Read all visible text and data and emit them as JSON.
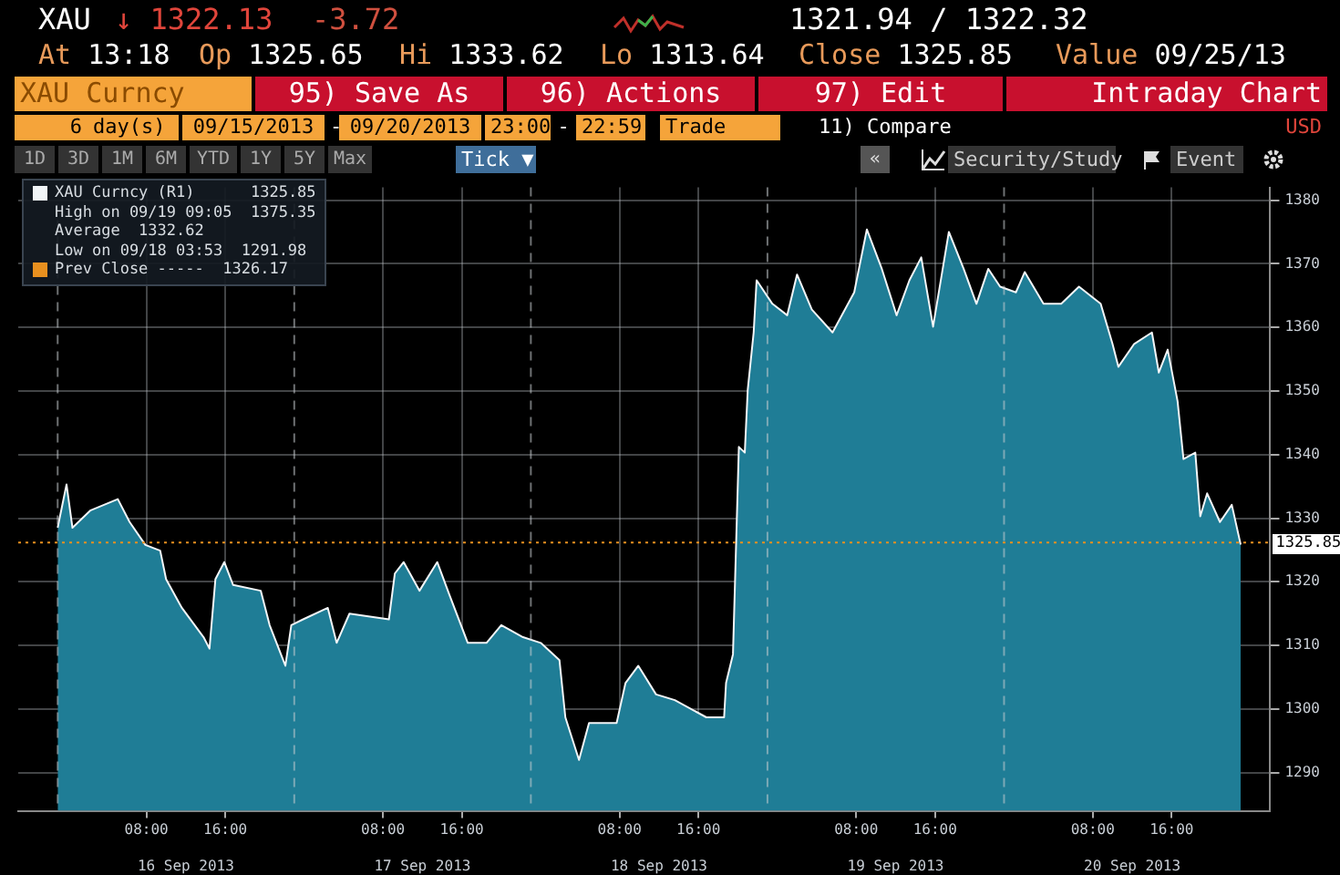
{
  "chart_data": {
    "type": "area",
    "x": [
      "2013-09-15T23:00",
      "2013-09-15T23:54",
      "2013-09-16T00:30",
      "2013-09-16T02:18",
      "2013-09-16T05:06",
      "2013-09-16T06:18",
      "2013-09-16T07:54",
      "2013-09-16T09:24",
      "2013-09-16T10:00",
      "2013-09-16T11:36",
      "2013-09-16T13:48",
      "2013-09-16T14:24",
      "2013-09-16T15:00",
      "2013-09-16T15:54",
      "2013-09-16T16:48",
      "2013-09-16T19:36",
      "2013-09-16T20:30",
      "2013-09-16T22:06",
      "2013-09-16T22:42",
      "2013-09-16T23:54",
      "2013-09-17T02:24",
      "2013-09-17T03:18",
      "2013-09-17T04:36",
      "2013-09-17T08:36",
      "2013-09-17T09:12",
      "2013-09-17T10:06",
      "2013-09-17T11:42",
      "2013-09-17T13:30",
      "2013-09-17T14:48",
      "2013-09-17T16:36",
      "2013-09-17T18:30",
      "2013-09-17T20:00",
      "2013-09-17T22:12",
      "2013-09-18T00:00",
      "2013-09-18T01:54",
      "2013-09-18T02:30",
      "2013-09-18T03:53",
      "2013-09-18T04:54",
      "2013-09-18T07:42",
      "2013-09-18T08:36",
      "2013-09-18T09:54",
      "2013-09-18T11:42",
      "2013-09-18T13:36",
      "2013-09-18T16:48",
      "2013-09-18T18:36",
      "2013-09-18T18:48",
      "2013-09-18T19:30",
      "2013-09-18T20:06",
      "2013-09-18T20:42",
      "2013-09-18T21:00",
      "2013-09-18T21:36",
      "2013-09-18T21:54",
      "2013-09-18T23:30",
      "2013-09-19T01:00",
      "2013-09-19T02:00",
      "2013-09-19T03:30",
      "2013-09-19T05:36",
      "2013-09-19T07:48",
      "2013-09-19T09:05",
      "2013-09-19T10:36",
      "2013-09-19T12:06",
      "2013-09-19T13:24",
      "2013-09-19T14:36",
      "2013-09-19T15:48",
      "2013-09-19T17:24",
      "2013-09-19T18:54",
      "2013-09-19T20:12",
      "2013-09-19T21:24",
      "2013-09-19T22:36",
      "2013-09-20T00:12",
      "2013-09-20T01:06",
      "2013-09-20T03:00",
      "2013-09-20T04:48",
      "2013-09-20T06:36",
      "2013-09-20T08:48",
      "2013-09-20T10:00",
      "2013-09-20T10:36",
      "2013-09-20T12:12",
      "2013-09-20T14:00",
      "2013-09-20T14:42",
      "2013-09-20T15:36",
      "2013-09-20T16:36",
      "2013-09-20T17:12",
      "2013-09-20T18:24",
      "2013-09-20T18:54",
      "2013-09-20T19:36",
      "2013-09-20T20:54",
      "2013-09-20T22:06",
      "2013-09-20T23:00"
    ],
    "series": [
      {
        "name": "XAU Curncy (R1)",
        "color": "#1f7d96",
        "values": [
          1328.5,
          1335.3,
          1328.5,
          1331.2,
          1333,
          1329.4,
          1325.8,
          1324.9,
          1320.4,
          1315.9,
          1311.3,
          1309.5,
          1320.4,
          1323.1,
          1319.5,
          1318.6,
          1313.2,
          1306.8,
          1313.2,
          1314.1,
          1315.9,
          1310.4,
          1315,
          1314.1,
          1321.3,
          1323.1,
          1318.6,
          1323.1,
          1317.7,
          1310.4,
          1310.4,
          1313.2,
          1311.3,
          1310.4,
          1307.7,
          1298.7,
          1292,
          1297.8,
          1297.8,
          1304.1,
          1306.8,
          1302.3,
          1301.4,
          1298.7,
          1298.7,
          1304.1,
          1308.6,
          1341.2,
          1340.3,
          1350.2,
          1359.2,
          1367.4,
          1363.7,
          1361.9,
          1368.3,
          1362.8,
          1359.2,
          1365.5,
          1375.4,
          1369.2,
          1361.9,
          1367.4,
          1371,
          1360.1,
          1375,
          1369.2,
          1363.7,
          1369.2,
          1366.4,
          1365.5,
          1368.7,
          1363.7,
          1363.7,
          1366.4,
          1363.7,
          1357.4,
          1353.8,
          1357.4,
          1359.2,
          1352.9,
          1356.5,
          1348.4,
          1339.3,
          1340.3,
          1330.3,
          1333.9,
          1329.4,
          1332.1,
          1325.85
        ]
      }
    ],
    "xlim": [
      "2013-09-15T19:00",
      "2013-09-21T02:00"
    ],
    "xticks": [
      {
        "value": "2013-09-16T08:00",
        "label": "08:00"
      },
      {
        "value": "2013-09-16T16:00",
        "label": "16:00"
      },
      {
        "value": "2013-09-17T08:00",
        "label": "08:00"
      },
      {
        "value": "2013-09-17T16:00",
        "label": "16:00"
      },
      {
        "value": "2013-09-18T08:00",
        "label": "08:00"
      },
      {
        "value": "2013-09-18T16:00",
        "label": "16:00"
      },
      {
        "value": "2013-09-19T08:00",
        "label": "08:00"
      },
      {
        "value": "2013-09-19T16:00",
        "label": "16:00"
      },
      {
        "value": "2013-09-20T08:00",
        "label": "08:00"
      },
      {
        "value": "2013-09-20T16:00",
        "label": "16:00"
      }
    ],
    "x2lim": [
      "2013-09-15T19:00",
      "2013-09-21T02:00"
    ],
    "x2ticks": [
      {
        "value": "2013-09-16T12:00",
        "label": "16 Sep 2013"
      },
      {
        "value": "2013-09-17T12:00",
        "label": "17 Sep 2013"
      },
      {
        "value": "2013-09-18T12:00",
        "label": "18 Sep 2013"
      },
      {
        "value": "2013-09-19T12:00",
        "label": "19 Sep 2013"
      },
      {
        "value": "2013-09-20T12:00",
        "label": "20 Sep 2013"
      }
    ],
    "ylim": [
      1284,
      1382
    ],
    "yticks": [
      1290,
      1300,
      1310,
      1320,
      1330,
      1340,
      1350,
      1360,
      1370,
      1380
    ],
    "grid": true,
    "legend": "top left",
    "ref_lines": [
      {
        "axis": "y",
        "value": 1326.17,
        "label": "Prev Close -----  1326.17",
        "color": "#e8901f",
        "line_style": "dotted"
      },
      {
        "axis": "x",
        "value": "2013-09-15T23:00",
        "line_style": "dashed"
      },
      {
        "axis": "x",
        "value": "2013-09-16T23:00",
        "line_style": "dashed"
      },
      {
        "axis": "x",
        "value": "2013-09-17T23:00",
        "line_style": "dashed"
      },
      {
        "axis": "x",
        "value": "2013-09-18T23:00",
        "line_style": "dashed"
      },
      {
        "axis": "x",
        "value": "2013-09-19T23:00",
        "line_style": "dashed"
      }
    ],
    "annotations": [
      "XAU",
      "↓ 1322.13",
      "-3.72",
      "1321.94 / 1322.32",
      "At 13:18",
      "Op 1325.65",
      "Hi 1333.62",
      "Lo 1313.64",
      "Close 1325.85",
      "Value 09/25/13",
      "XAU Curncy",
      "95) Save As",
      "96) Actions",
      "97) Edit",
      "Intraday Chart",
      "6",
      "day(s)",
      "09/15/2013",
      "-",
      "09/20/2013",
      "23:00",
      "-",
      "22:59",
      "Trade",
      "11) Compare",
      "USD",
      "1D",
      "3D",
      "1M",
      "6M",
      "YTD",
      "1Y",
      "5Y",
      "Max",
      "Tick ▼",
      "«",
      "Security/Study",
      "Event",
      "1325.85",
      "High on 09/19 09:05  1375.35",
      "Average  1332.62",
      "Low on 09/18 03:53  1291.98",
      {
        "text": "1325.85",
        "x": "2013-09-20T23:00",
        "y": 1325.85
      }
    ]
  }
}
